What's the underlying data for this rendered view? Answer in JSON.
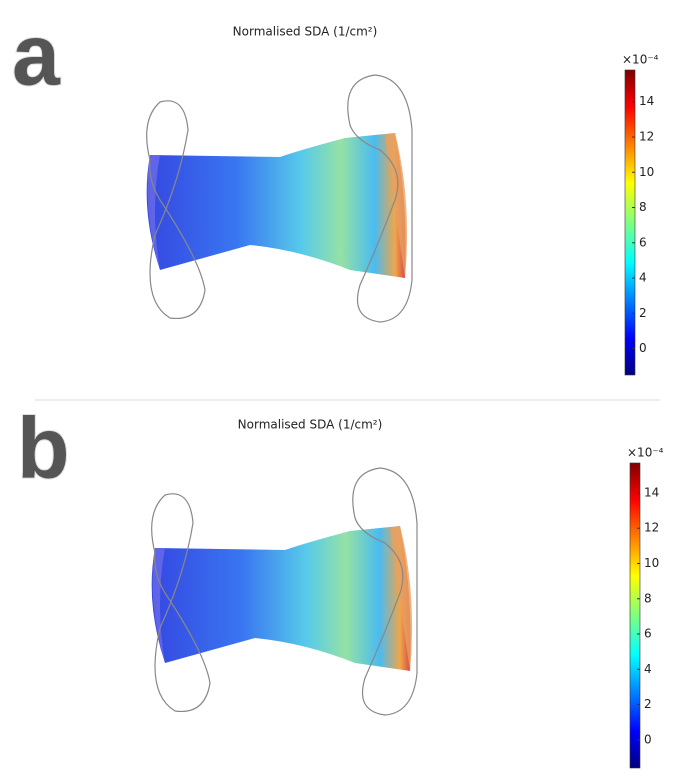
{
  "panels": [
    {
      "label": "a",
      "title": "Normalised SDA (1/cm²)",
      "colorbar": {
        "multiplier": "×10⁻⁴",
        "lim": [
          -1.5,
          15.8
        ],
        "ticks": [
          0,
          2,
          4,
          6,
          8,
          10,
          12,
          14
        ]
      }
    },
    {
      "label": "b",
      "title": "Normalised SDA (1/cm²)",
      "colorbar": {
        "multiplier": "×10⁻⁴",
        "lim": [
          -1.6,
          15.7
        ],
        "ticks": [
          0,
          2,
          4,
          6,
          8,
          10,
          12,
          14
        ]
      }
    }
  ]
}
